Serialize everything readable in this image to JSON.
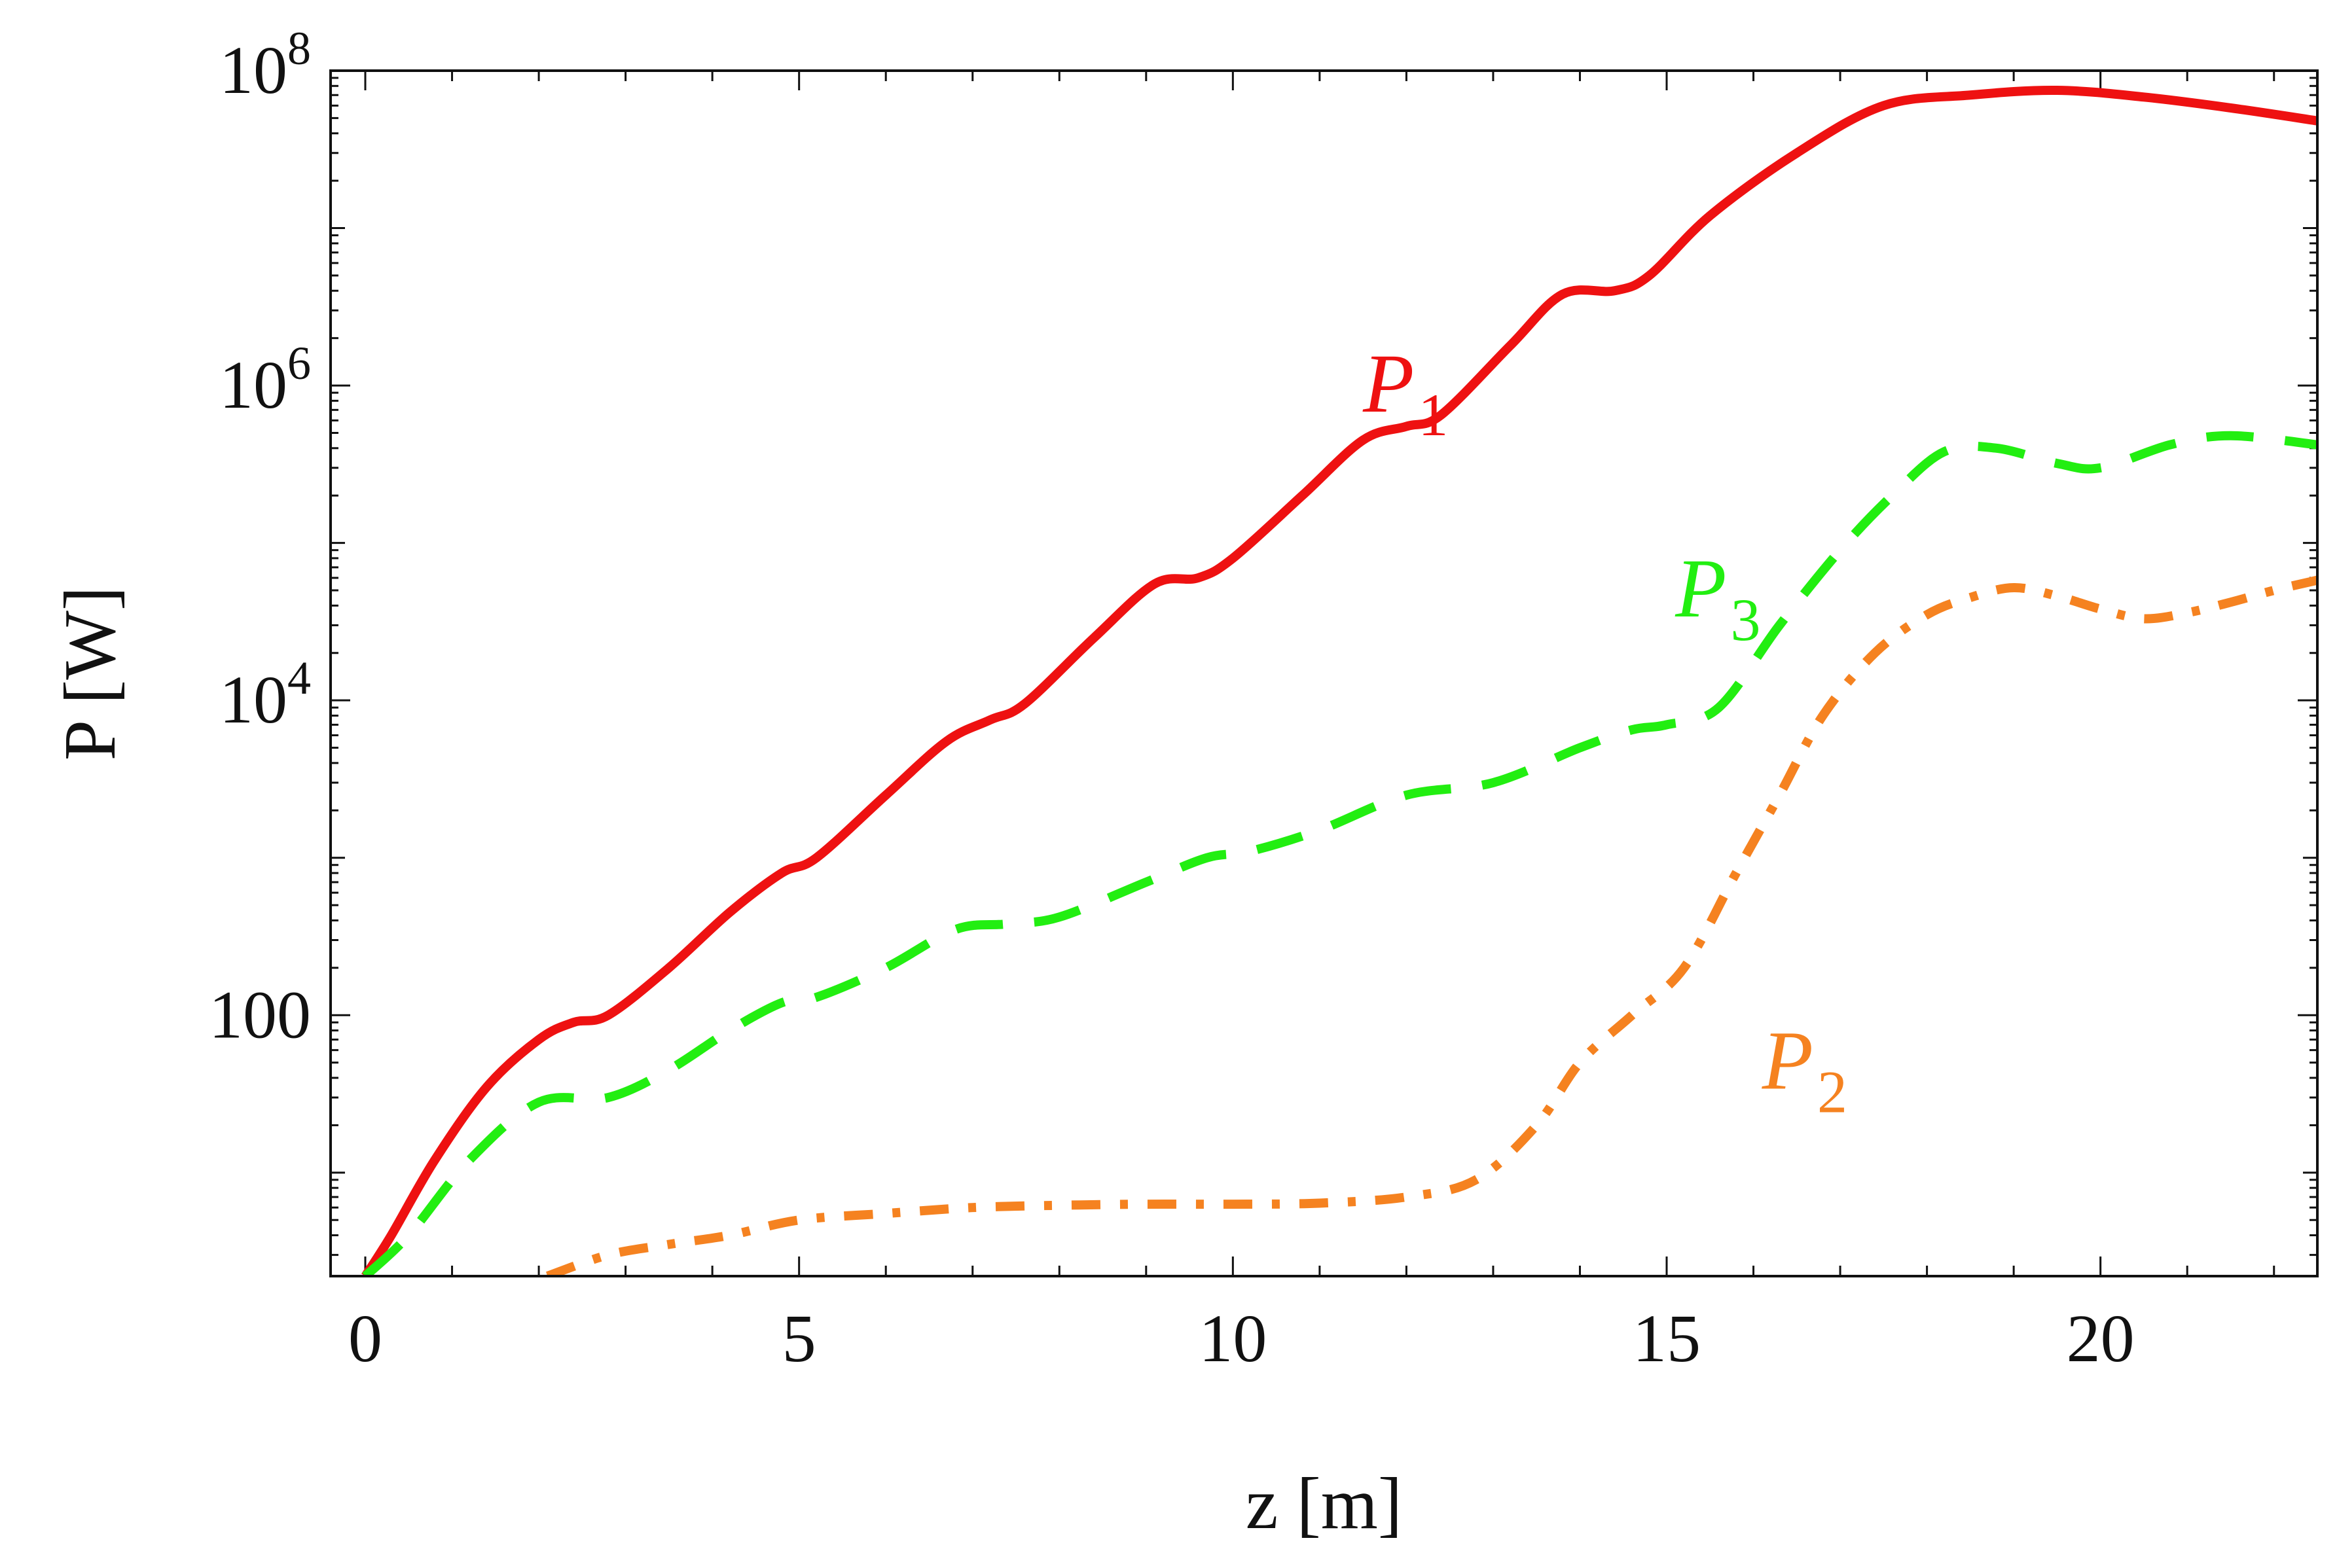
{
  "chart_data": {
    "type": "line",
    "yscale": "log",
    "xlabel": "z [m]",
    "ylabel": "P [W]",
    "xlim": [
      -0.4,
      22.5
    ],
    "ylim": [
      2.2,
      100000000
    ],
    "xticks": [
      0,
      5,
      10,
      15,
      20
    ],
    "xtick_labels": [
      "0",
      "5",
      "10",
      "15",
      "20"
    ],
    "yticks": [
      100,
      10000,
      1000000,
      100000000
    ],
    "ytick_labels": [
      {
        "base": "100",
        "exp": ""
      },
      {
        "base": "10",
        "exp": "4"
      },
      {
        "base": "10",
        "exp": "6"
      },
      {
        "base": "10",
        "exp": "8"
      }
    ],
    "series": [
      {
        "name": "P1",
        "label_main": "P",
        "label_sub": "1",
        "color": "#ee1111",
        "style": "solid",
        "label_at": {
          "x": 11.5,
          "y": 1000000
        },
        "x": [
          0,
          0.3,
          0.8,
          1.4,
          2.0,
          2.4,
          2.8,
          3.5,
          4.2,
          4.8,
          5.2,
          6.0,
          6.7,
          7.2,
          7.6,
          8.4,
          9.1,
          9.6,
          10.0,
          10.8,
          11.5,
          12.0,
          12.4,
          13.2,
          13.8,
          14.4,
          14.8,
          15.5,
          16.5,
          17.5,
          18.5,
          19.5,
          20.5,
          21.5,
          22.5
        ],
        "y": [
          2.2,
          4,
          12,
          35,
          70,
          90,
          100,
          200,
          450,
          800,
          1000,
          2500,
          5500,
          7500,
          9500,
          25000,
          55000,
          60000,
          80000,
          200000,
          450000,
          550000,
          650000,
          1800000,
          3800000,
          4000000,
          5000000,
          12000000,
          30000000,
          60000000,
          70000000,
          75000000,
          68000000,
          58000000,
          48000000
        ]
      },
      {
        "name": "P3",
        "label_main": "P",
        "label_sub": "3",
        "color": "#22ee11",
        "style": "dashed",
        "label_at": {
          "x": 15.1,
          "y": 50000
        },
        "x": [
          0,
          0.5,
          1.2,
          2.0,
          2.8,
          3.5,
          4.2,
          4.8,
          5.2,
          6.0,
          6.8,
          7.4,
          8.0,
          9.0,
          9.7,
          10.2,
          11.0,
          12.0,
          13.0,
          14.0,
          14.6,
          15.0,
          15.6,
          16.3,
          17.0,
          17.6,
          18.2,
          18.8,
          19.5,
          20.0,
          20.8,
          21.5,
          22.5
        ],
        "y": [
          2.2,
          4,
          12,
          28,
          30,
          45,
          80,
          120,
          130,
          200,
          350,
          380,
          420,
          700,
          1000,
          1100,
          1500,
          2500,
          3000,
          5000,
          6500,
          7000,
          9000,
          30000,
          90000,
          200000,
          380000,
          400000,
          320000,
          300000,
          420000,
          480000,
          420000
        ]
      },
      {
        "name": "P2",
        "label_main": "P",
        "label_sub": "2",
        "color": "#f58220",
        "style": "dash-dot",
        "label_at": {
          "x": 16.1,
          "y": 50
        },
        "x": [
          2.1,
          2.8,
          3.5,
          4.2,
          5.0,
          6.0,
          7.0,
          8.0,
          9.0,
          10.0,
          11.0,
          12.0,
          12.8,
          13.5,
          14.0,
          14.6,
          15.2,
          15.8,
          16.3,
          16.8,
          17.4,
          18.0,
          18.5,
          19.0,
          19.5,
          20.0,
          20.5,
          21.0,
          21.5,
          22.0,
          22.5
        ],
        "y": [
          2.2,
          3,
          3.5,
          4,
          5,
          5.5,
          6,
          6.2,
          6.3,
          6.3,
          6.4,
          7,
          9,
          20,
          50,
          100,
          200,
          800,
          2500,
          8000,
          20000,
          35000,
          45000,
          52000,
          46000,
          38000,
          33000,
          36000,
          42000,
          50000,
          58000
        ]
      }
    ]
  }
}
